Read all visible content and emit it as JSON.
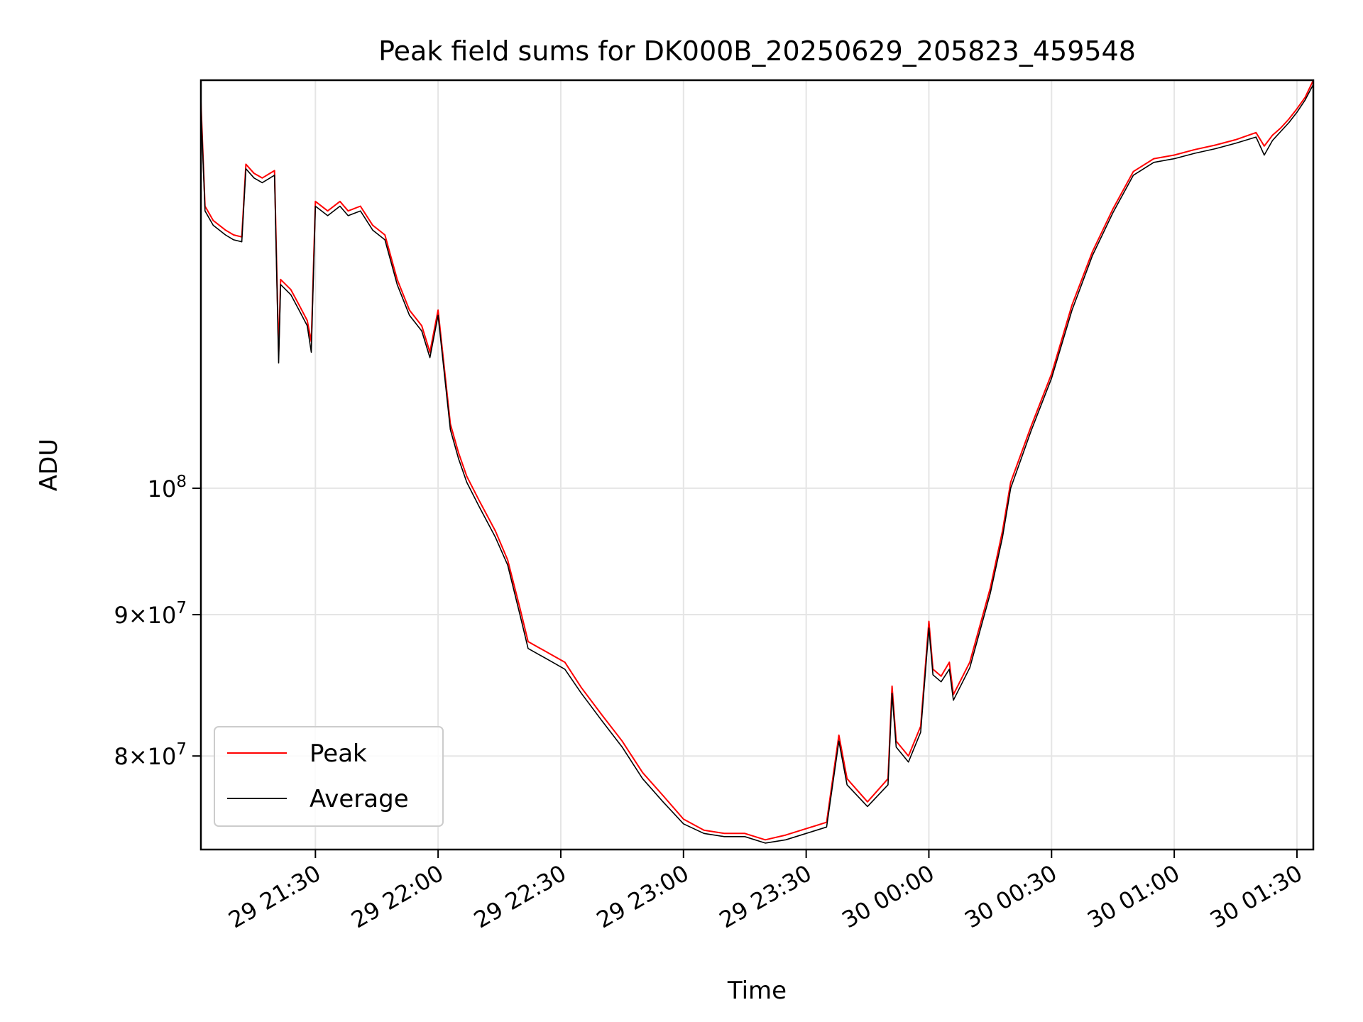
{
  "chart_data": {
    "type": "line",
    "title": "Peak field sums for DK000B_20250629_205823_459548",
    "xlabel": "Time",
    "ylabel": "ADU",
    "x_unit": "date-time",
    "xlim": [
      "2025-06-29T21:02:00",
      "2025-06-30T01:34:00"
    ],
    "ylim": [
      74000000,
      140500000
    ],
    "y_scale": "log",
    "grid": true,
    "legend_position": "lower-left",
    "x_ticks": [
      {
        "value": "2025-06-29T21:30:00",
        "label": "29 21:30"
      },
      {
        "value": "2025-06-29T22:00:00",
        "label": "29 22:00"
      },
      {
        "value": "2025-06-29T22:30:00",
        "label": "29 22:30"
      },
      {
        "value": "2025-06-29T23:00:00",
        "label": "29 23:00"
      },
      {
        "value": "2025-06-29T23:30:00",
        "label": "29 23:30"
      },
      {
        "value": "2025-06-30T00:00:00",
        "label": "30 00:00"
      },
      {
        "value": "2025-06-30T00:30:00",
        "label": "30 00:30"
      },
      {
        "value": "2025-06-30T01:00:00",
        "label": "30 01:00"
      },
      {
        "value": "2025-06-30T01:30:00",
        "label": "30 01:30"
      }
    ],
    "y_ticks": [
      {
        "value": 80000000,
        "base": "8×10",
        "exp": "7"
      },
      {
        "value": 90000000,
        "base": "9×10",
        "exp": "7"
      },
      {
        "value": 100000000,
        "base": "10",
        "exp": "8"
      }
    ],
    "x": [
      "2025-06-29T21:02:00",
      "2025-06-29T21:03:00",
      "2025-06-29T21:05:00",
      "2025-06-29T21:08:00",
      "2025-06-29T21:10:00",
      "2025-06-29T21:12:00",
      "2025-06-29T21:13:00",
      "2025-06-29T21:15:00",
      "2025-06-29T21:17:00",
      "2025-06-29T21:20:00",
      "2025-06-29T21:21:00",
      "2025-06-29T21:21:30",
      "2025-06-29T21:24:00",
      "2025-06-29T21:26:00",
      "2025-06-29T21:28:00",
      "2025-06-29T21:29:00",
      "2025-06-29T21:30:00",
      "2025-06-29T21:33:00",
      "2025-06-29T21:36:00",
      "2025-06-29T21:38:00",
      "2025-06-29T21:41:00",
      "2025-06-29T21:44:00",
      "2025-06-29T21:47:00",
      "2025-06-29T21:50:00",
      "2025-06-29T21:53:00",
      "2025-06-29T21:56:00",
      "2025-06-29T21:58:00",
      "2025-06-29T22:00:00",
      "2025-06-29T22:03:00",
      "2025-06-29T22:05:00",
      "2025-06-29T22:07:00",
      "2025-06-29T22:10:00",
      "2025-06-29T22:14:00",
      "2025-06-29T22:17:00",
      "2025-06-29T22:20:00",
      "2025-06-29T22:22:00",
      "2025-06-29T22:25:00",
      "2025-06-29T22:28:00",
      "2025-06-29T22:31:00",
      "2025-06-29T22:35:00",
      "2025-06-29T22:40:00",
      "2025-06-29T22:45:00",
      "2025-06-29T22:50:00",
      "2025-06-29T22:55:00",
      "2025-06-29T23:00:00",
      "2025-06-29T23:05:00",
      "2025-06-29T23:10:00",
      "2025-06-29T23:15:00",
      "2025-06-29T23:20:00",
      "2025-06-29T23:25:00",
      "2025-06-29T23:30:00",
      "2025-06-29T23:35:00",
      "2025-06-29T23:38:00",
      "2025-06-29T23:40:00",
      "2025-06-29T23:45:00",
      "2025-06-29T23:50:00",
      "2025-06-29T23:51:00",
      "2025-06-29T23:52:00",
      "2025-06-29T23:55:00",
      "2025-06-29T23:58:00",
      "2025-06-30T00:00:00",
      "2025-06-30T00:01:00",
      "2025-06-30T00:03:00",
      "2025-06-30T00:05:00",
      "2025-06-30T00:06:00",
      "2025-06-30T00:10:00",
      "2025-06-30T00:15:00",
      "2025-06-30T00:18:00",
      "2025-06-30T00:20:00",
      "2025-06-30T00:25:00",
      "2025-06-30T00:30:00",
      "2025-06-30T00:35:00",
      "2025-06-30T00:40:00",
      "2025-06-30T00:45:00",
      "2025-06-30T00:50:00",
      "2025-06-30T00:55:00",
      "2025-06-30T01:00:00",
      "2025-06-30T01:05:00",
      "2025-06-30T01:10:00",
      "2025-06-30T01:15:00",
      "2025-06-30T01:20:00",
      "2025-06-30T01:22:00",
      "2025-06-30T01:24:00",
      "2025-06-30T01:26:00",
      "2025-06-30T01:28:00",
      "2025-06-30T01:30:00",
      "2025-06-30T01:32:00",
      "2025-06-30T01:34:00"
    ],
    "series": [
      {
        "name": "Peak",
        "color": "#ff0000",
        "values": [
          138000000,
          126500000,
          125000000,
          124000000,
          123500000,
          123300000,
          131000000,
          130000000,
          129500000,
          130300000,
          112000000,
          119000000,
          118000000,
          116500000,
          115000000,
          113000000,
          127000000,
          126000000,
          127000000,
          126000000,
          126500000,
          124500000,
          123500000,
          119000000,
          116000000,
          114500000,
          112000000,
          116000000,
          105500000,
          103000000,
          101000000,
          99000000,
          96500000,
          94200000,
          90500000,
          88000000,
          87500000,
          87000000,
          86500000,
          84700000,
          82800000,
          81000000,
          78900000,
          77400000,
          75900000,
          75200000,
          75000000,
          75000000,
          74600000,
          74900000,
          75300000,
          75700000,
          81400000,
          78500000,
          77000000,
          78500000,
          84800000,
          81000000,
          80000000,
          82000000,
          89500000,
          86000000,
          85500000,
          86500000,
          84200000,
          86500000,
          92000000,
          96500000,
          100500000,
          105300000,
          110000000,
          116500000,
          121800000,
          126200000,
          130200000,
          131600000,
          132000000,
          132600000,
          133100000,
          133700000,
          134500000,
          133000000,
          134200000,
          135000000,
          136000000,
          137200000,
          138500000,
          140500000
        ]
      },
      {
        "name": "Average",
        "color": "#000000",
        "values": [
          137500000,
          126000000,
          124500000,
          123500000,
          123000000,
          122800000,
          130500000,
          129500000,
          129000000,
          129800000,
          111000000,
          118500000,
          117500000,
          116000000,
          114500000,
          112000000,
          126500000,
          125500000,
          126500000,
          125500000,
          126000000,
          124000000,
          123000000,
          118500000,
          115500000,
          114000000,
          111500000,
          115500000,
          105000000,
          102500000,
          100500000,
          98500000,
          96000000,
          93800000,
          90000000,
          87500000,
          87000000,
          86500000,
          86000000,
          84300000,
          82400000,
          80600000,
          78500000,
          77000000,
          75600000,
          75000000,
          74800000,
          74800000,
          74400000,
          74600000,
          75000000,
          75400000,
          81000000,
          78100000,
          76700000,
          78100000,
          84300000,
          80600000,
          79600000,
          81600000,
          89000000,
          85600000,
          85100000,
          86000000,
          83800000,
          86100000,
          91600000,
          96000000,
          100000000,
          104900000,
          109600000,
          116000000,
          121400000,
          125800000,
          129800000,
          131200000,
          131600000,
          132200000,
          132700000,
          133300000,
          134000000,
          132000000,
          133600000,
          134600000,
          135600000,
          136800000,
          138200000,
          140000000
        ]
      }
    ]
  }
}
